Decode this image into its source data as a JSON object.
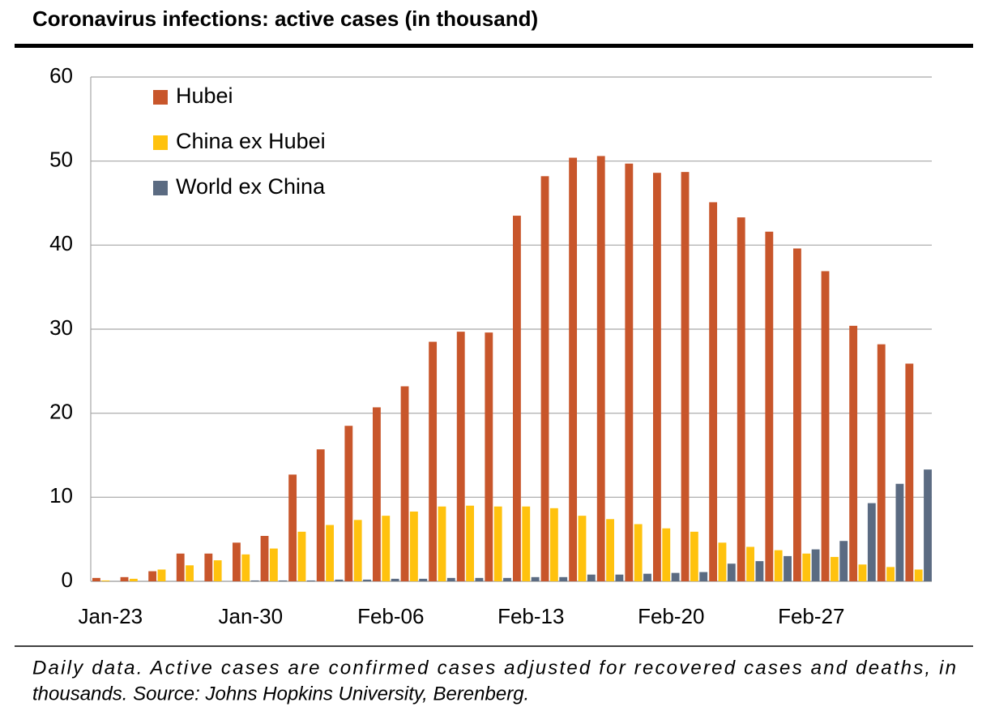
{
  "chart_data": {
    "type": "bar",
    "title": "Coronavirus infections: active cases (in thousand)",
    "note": [
      "Daily data. Active cases are confirmed cases adjusted for recovered cases and deaths, in",
      "thousands. Source: Johns Hopkins University, Berenberg."
    ],
    "categories": [
      "Jan-23",
      null,
      null,
      null,
      null,
      "Jan-30",
      null,
      null,
      null,
      null,
      "Feb-06",
      null,
      null,
      null,
      null,
      "Feb-13",
      null,
      null,
      null,
      null,
      "Feb-20",
      null,
      null,
      null,
      null,
      "Feb-27",
      null,
      null,
      null,
      null
    ],
    "series": [
      {
        "name": "Hubei",
        "color": "#c8562b",
        "values": [
          0.4,
          0.5,
          1.2,
          3.3,
          3.3,
          4.6,
          5.4,
          12.7,
          15.7,
          18.5,
          20.7,
          23.2,
          28.5,
          29.7,
          29.6,
          43.5,
          48.2,
          50.4,
          50.6,
          49.7,
          48.6,
          48.7,
          45.1,
          43.3,
          41.6,
          39.6,
          36.9,
          30.4,
          28.2,
          25.9
        ]
      },
      {
        "name": "China ex Hubei",
        "color": "#ffc20e",
        "values": [
          0.1,
          0.3,
          1.4,
          1.9,
          2.5,
          3.2,
          3.9,
          5.9,
          6.7,
          7.3,
          7.8,
          8.3,
          8.9,
          9.0,
          8.9,
          8.9,
          8.7,
          7.8,
          7.4,
          6.8,
          6.3,
          5.9,
          4.6,
          4.1,
          3.7,
          3.3,
          2.9,
          2.0,
          1.7,
          1.4
        ]
      },
      {
        "name": "World ex China",
        "color": "#5b6b82",
        "values": [
          0,
          0,
          0,
          0,
          0,
          0.1,
          0.1,
          0.1,
          0.2,
          0.2,
          0.3,
          0.3,
          0.4,
          0.4,
          0.4,
          0.5,
          0.5,
          0.8,
          0.8,
          0.9,
          1.0,
          1.1,
          2.1,
          2.4,
          3.0,
          3.8,
          4.8,
          9.3,
          11.6,
          13.3
        ]
      }
    ],
    "ylim": [
      0,
      60
    ],
    "yticks": [
      0,
      10,
      20,
      30,
      40,
      50,
      60
    ],
    "grid": true,
    "legend": "top-left"
  }
}
